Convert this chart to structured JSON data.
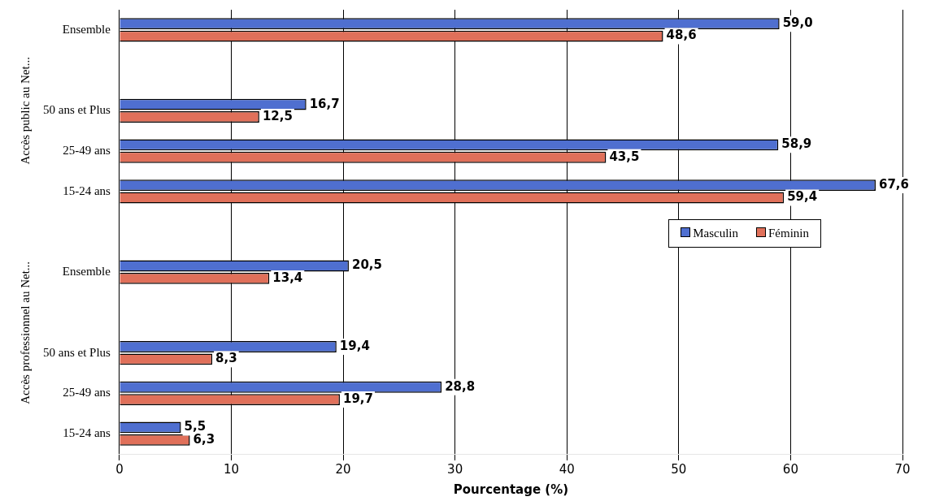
{
  "chart_data": {
    "type": "bar",
    "orientation": "horizontal",
    "xlabel": "Pourcentage (%)",
    "categories": [
      "Ensemble",
      null,
      "50 ans et Plus",
      "25-49 ans",
      "15-24 ans",
      null,
      "Ensemble",
      null,
      "50 ans et Plus",
      "25-49 ans",
      "15-24 ans"
    ],
    "series": [
      {
        "name": "Masculin",
        "color": "#4f6fd0",
        "values": [
          59.0,
          null,
          16.7,
          58.9,
          67.6,
          null,
          20.5,
          null,
          19.4,
          28.8,
          5.5
        ],
        "value_labels": [
          "59,0",
          null,
          "16,7",
          "58,9",
          "67,6",
          null,
          "20,5",
          null,
          "19,4",
          "28,8",
          "5,5"
        ]
      },
      {
        "name": "Féminin",
        "color": "#e0705a",
        "values": [
          48.6,
          null,
          12.5,
          43.5,
          59.4,
          null,
          13.4,
          null,
          8.3,
          19.7,
          6.3
        ],
        "value_labels": [
          "48,6",
          null,
          "12,5",
          "43,5",
          "59,4",
          null,
          "13,4",
          null,
          "8,3",
          "19,7",
          "6,3"
        ]
      }
    ],
    "annotations": [
      "Accès public au Net...",
      "Accès professionnel au Net..."
    ],
    "xlim": [
      0,
      70
    ],
    "xticks": [
      0,
      10,
      20,
      30,
      40,
      50,
      60,
      70
    ],
    "grid": "x",
    "legend": "right"
  }
}
